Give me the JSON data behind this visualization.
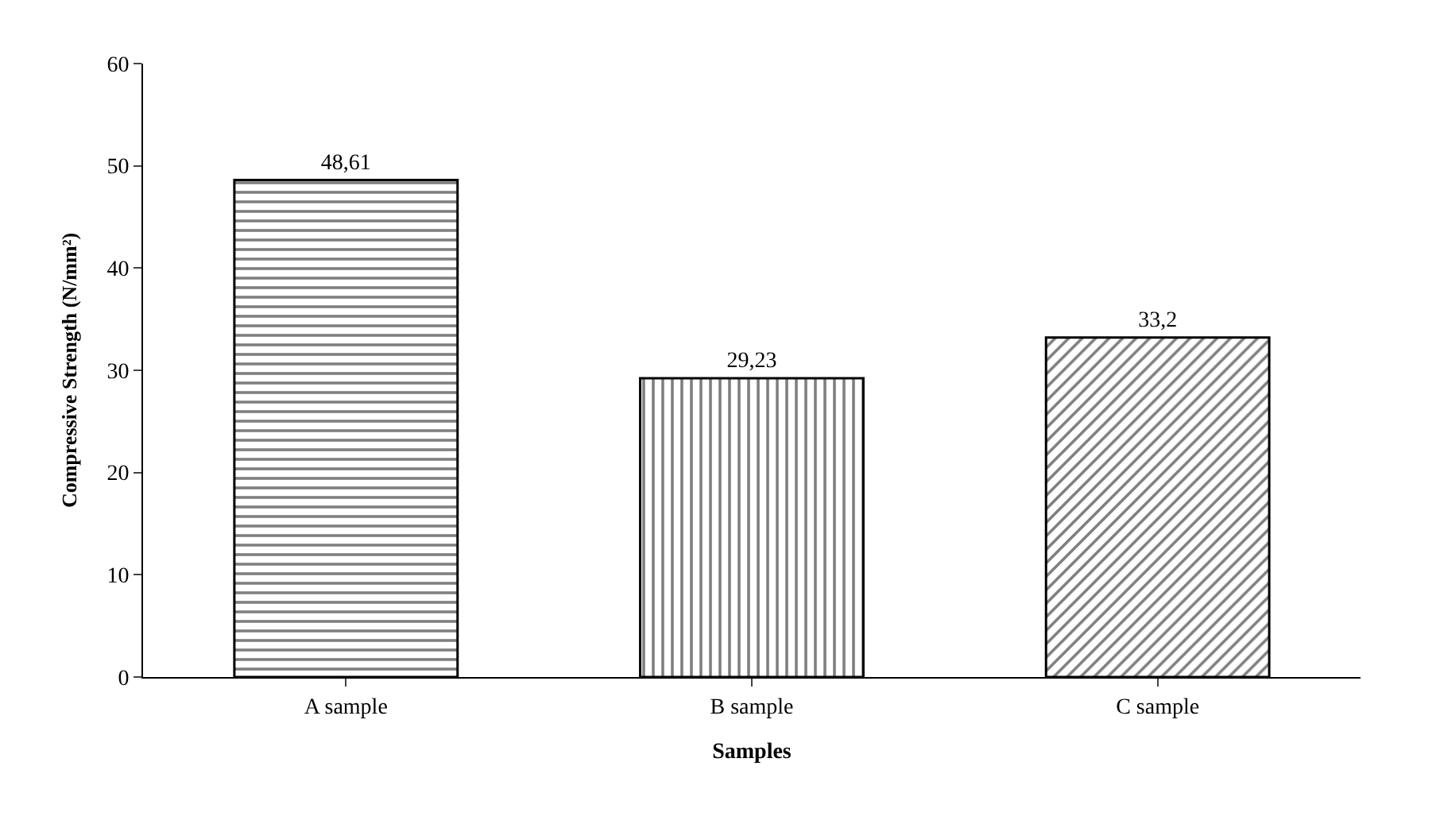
{
  "chart_data": {
    "type": "bar",
    "xlabel": "Samples",
    "ylabel": "Compressive Strength (N/mm²)",
    "categories": [
      "A sample",
      "B sample",
      "C sample"
    ],
    "values": [
      48.61,
      29.23,
      33.2
    ],
    "value_labels": [
      "48,61",
      "29,23",
      "33,2"
    ],
    "color": "#000000",
    "ylim": [
      0,
      60
    ],
    "yticks": [
      0,
      10,
      20,
      30,
      40,
      50,
      60
    ],
    "grid": false
  }
}
